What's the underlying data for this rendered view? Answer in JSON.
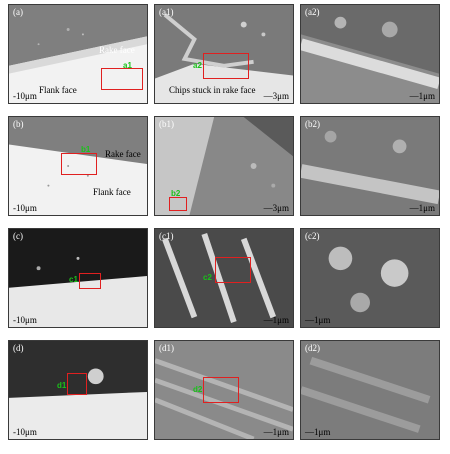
{
  "panels": {
    "a": {
      "label": "(a)",
      "scale": "-10μm",
      "tag": "a1",
      "text1": "Rake face",
      "text2": "Flank face"
    },
    "a1": {
      "label": "(a1)",
      "scale": "—3μm",
      "tag": "a2",
      "text1": "Chips stuck in rake face"
    },
    "a2": {
      "label": "(a2)",
      "scale": "—1μm"
    },
    "b": {
      "label": "(b)",
      "scale": "-10μm",
      "tag": "b1",
      "text1": "Rake face",
      "text2": "Flank face"
    },
    "b1": {
      "label": "(b1)",
      "scale": "—3μm",
      "tag": "b2"
    },
    "b2": {
      "label": "(b2)",
      "scale": "—1μm"
    },
    "c": {
      "label": "(c)",
      "scale": "-10μm",
      "tag": "c1"
    },
    "c1": {
      "label": "(c1)",
      "scale": "—1μm",
      "tag": "c2"
    },
    "c2": {
      "label": "(c2)",
      "scale": "—1μm"
    },
    "d": {
      "label": "(d)",
      "scale": "-10μm",
      "tag": "d1"
    },
    "d1": {
      "label": "(d1)",
      "scale": "—1μm",
      "tag": "d2"
    },
    "d2": {
      "label": "(d2)",
      "scale": "—1μm"
    }
  }
}
